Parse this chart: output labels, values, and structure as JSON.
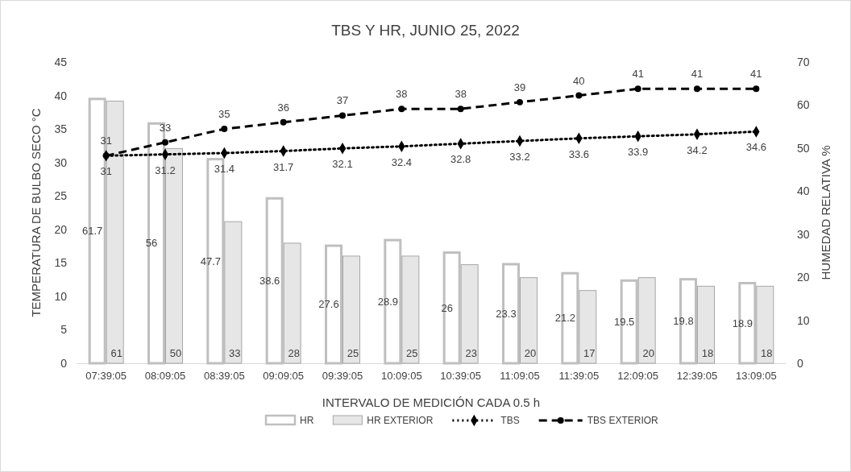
{
  "chart_data": {
    "type": "bar",
    "title": "TBS Y HR, JUNIO 25, 2022",
    "xlabel": "INTERVALO DE MEDICIÓN CADA 0.5 h",
    "ylabel": "TEMPERATURA DE BULBO SECO °C",
    "y2label": "HUMEDAD RELATIVA %",
    "categories": [
      "07:39:05",
      "08:09:05",
      "08:39:05",
      "09:09:05",
      "09:39:05",
      "10:09:05",
      "10:39:05",
      "11:09:05",
      "11:39:05",
      "12:09:05",
      "12:39:05",
      "13:09:05"
    ],
    "series": [
      {
        "name": "HR",
        "axis": "y2",
        "color": "#bfbfbf",
        "values": [
          61.7,
          56,
          47.7,
          38.6,
          27.6,
          28.9,
          26,
          23.3,
          21.2,
          19.5,
          19.8,
          18.9
        ]
      },
      {
        "name": "HR EXTERIOR",
        "axis": "y2",
        "color": "#e7e6e6",
        "values": [
          61,
          50,
          33,
          28,
          25,
          25,
          23,
          20,
          17,
          20,
          18,
          18
        ]
      },
      {
        "name": "TBS",
        "type": "line",
        "axis": "y",
        "color": "#000000",
        "marker": "diamond",
        "line_style": "dotted",
        "values": [
          31,
          31.2,
          31.4,
          31.7,
          32.1,
          32.4,
          32.8,
          33.2,
          33.6,
          33.9,
          34.2,
          34.6
        ]
      },
      {
        "name": "TBS EXTERIOR",
        "type": "line",
        "axis": "y",
        "color": "#000000",
        "marker": "circle",
        "line_style": "dashed",
        "values": [
          31,
          33,
          35,
          36,
          37,
          38,
          38,
          39,
          40,
          41,
          41,
          41
        ]
      }
    ],
    "ylim": [
      0,
      45
    ],
    "yticks": [
      0,
      5,
      10,
      15,
      20,
      25,
      30,
      35,
      40,
      45
    ],
    "y2lim": [
      0,
      70
    ],
    "y2ticks": [
      0,
      10,
      20,
      30,
      40,
      50,
      60,
      70
    ],
    "data_labels": true,
    "legend": "bottom",
    "grid": false
  }
}
